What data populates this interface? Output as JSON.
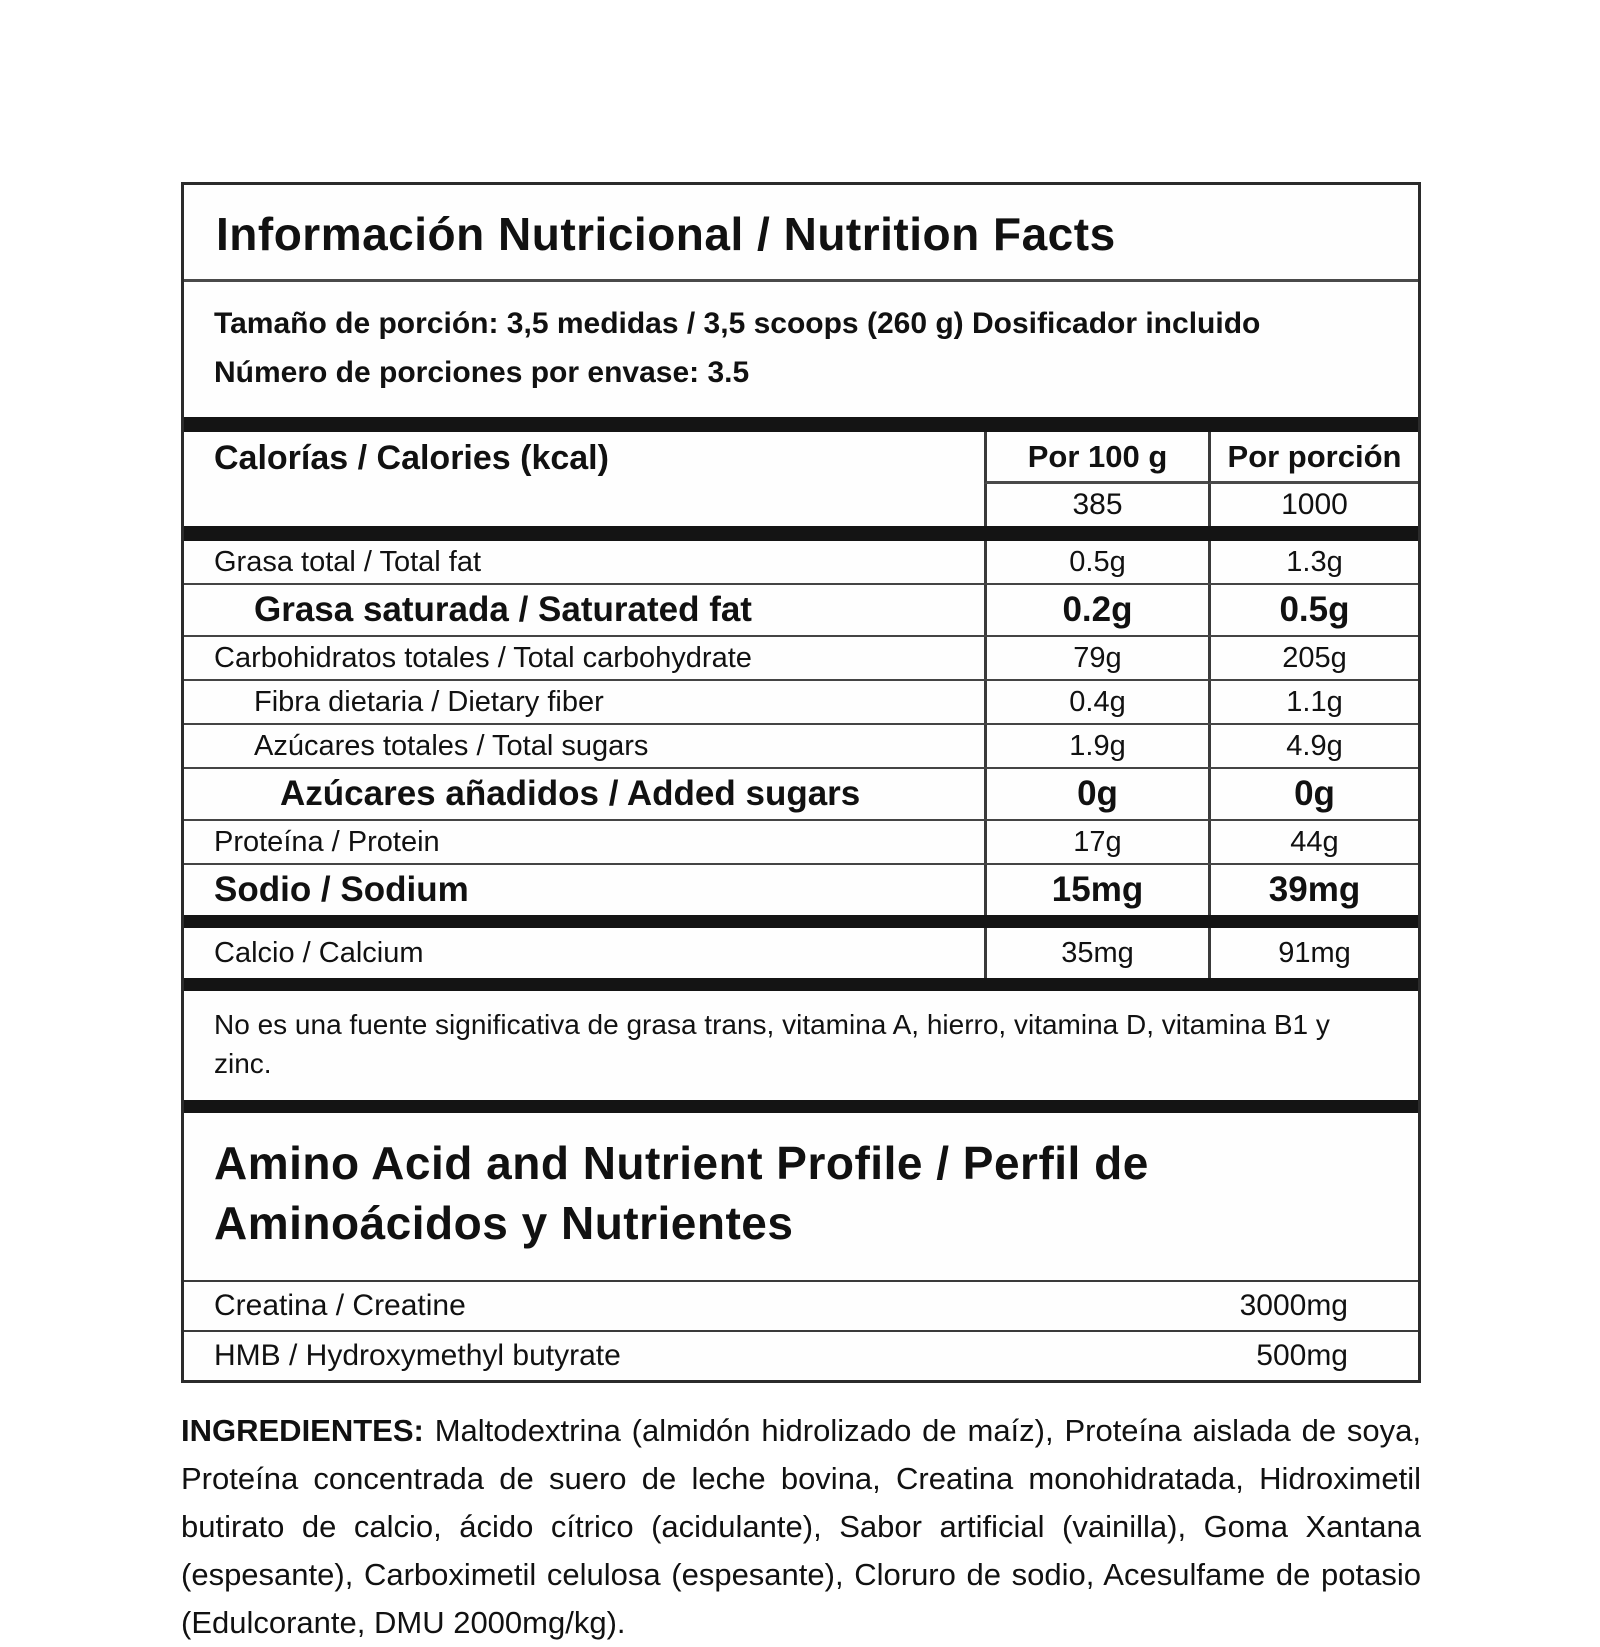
{
  "label": {
    "title": "Información Nutricional / Nutrition Facts",
    "serving_line1": "Tamaño de porción: 3,5 medidas / 3,5 scoops (260 g) Dosificador incluido",
    "serving_line2": "Número de porciones por envase: 3.5",
    "calories": {
      "label": "Calorías / Calories (kcal)",
      "col_per100": "Por 100 g",
      "col_portion": "Por porción",
      "per100": "385",
      "portion": "1000"
    },
    "nutrients": [
      {
        "label": "Grasa total / Total fat",
        "per100": "0.5g",
        "portion": "1.3g"
      },
      {
        "label": "Grasa saturada / Saturated fat",
        "per100": "0.2g",
        "portion": "0.5g"
      },
      {
        "label": "Carbohidratos totales / Total carbohydrate",
        "per100": "79g",
        "portion": "205g"
      },
      {
        "label": "Fibra dietaria / Dietary fiber",
        "per100": "0.4g",
        "portion": "1.1g"
      },
      {
        "label": "Azúcares totales / Total sugars",
        "per100": "1.9g",
        "portion": "4.9g"
      },
      {
        "label": "Azúcares añadidos / Added sugars",
        "per100": "0g",
        "portion": "0g"
      },
      {
        "label": "Proteína / Protein",
        "per100": "17g",
        "portion": "44g"
      },
      {
        "label": "Sodio / Sodium",
        "per100": "15mg",
        "portion": "39mg"
      }
    ],
    "calcium": {
      "label": "Calcio / Calcium",
      "per100": "35mg",
      "portion": "91mg"
    },
    "note": "No es una fuente significativa de grasa trans, vitamina A, hierro, vitamina D, vitamina B1 y zinc.",
    "amino_title": "Amino Acid and Nutrient Profile / Perfil de Aminoácidos y Nutrientes",
    "amino_rows": [
      {
        "label": "Creatina / Creatine",
        "value": "3000mg"
      },
      {
        "label": "HMB / Hydroxymethyl butyrate",
        "value": "500mg"
      }
    ],
    "ingredients_label": "INGREDIENTES:",
    "ingredients_text": "Maltodextrina (almidón hidrolizado de maíz), Proteína aislada de soya, Proteína concentrada de suero de leche bovina, Creatina monohidratada, Hidroximetil butirato de calcio, ácido cítrico (acidulante), Sabor artificial (vainilla), Goma Xantana (espesante), Carboximetil celulosa (espesante), Cloruro de sodio, Acesulfame de potasio (Edulcorante, DMU 2000mg/kg)."
  },
  "colors": {
    "background": "#ffffff",
    "text": "#111111",
    "divider_bar": "#141414",
    "border": "#2b2b2b"
  }
}
